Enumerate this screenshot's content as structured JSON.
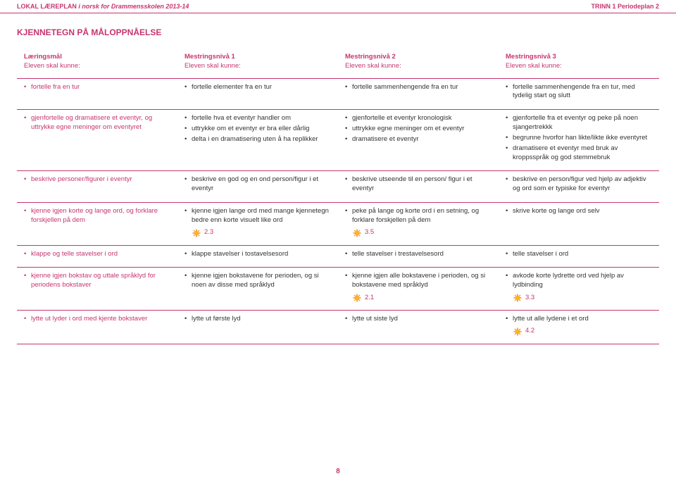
{
  "header": {
    "left_bold": "LOKAL LÆREPLAN",
    "left_italic": " i norsk for Drammensskolen 2013-14",
    "right": "TRINN 1 Periodeplan 2"
  },
  "section_title": "KJENNETEGN PÅ MÅLOPPNÅELSE",
  "columns": [
    {
      "title": "Læringsmål",
      "sub": "Eleven skal kunne:"
    },
    {
      "title": "Mestringsnivå 1",
      "sub": "Eleven skal kunne:"
    },
    {
      "title": "Mestringsnivå 2",
      "sub": "Eleven skal kunne:"
    },
    {
      "title": "Mestringsnivå 3",
      "sub": "Eleven skal kunne:"
    }
  ],
  "rows": [
    {
      "c0": [
        "fortelle fra en tur"
      ],
      "c1": [
        "fortelle elementer fra en tur"
      ],
      "c2": [
        "fortelle sammenhengende fra en tur"
      ],
      "c3": [
        "fortelle sammenhengende fra en tur, med tydelig start og slutt"
      ]
    },
    {
      "c0": [
        "gjenfortelle og dramatisere et eventyr, og uttrykke egne meninger om eventyret"
      ],
      "c1": [
        "fortelle hva et eventyr handler om",
        "uttrykke om et eventyr er bra eller dårlig",
        "delta i en dramatisering uten å ha replikker"
      ],
      "c2": [
        "gjenfortelle et eventyr kronologisk",
        "uttrykke egne meninger om et eventyr",
        "dramatisere et eventyr"
      ],
      "c3": [
        "gjenfortelle fra et eventyr og peke på noen sjangertrekkk",
        "begrunne hvorfor han likte/likte ikke eventyret",
        "dramatisere et eventyr med bruk av kroppsspråk og god stemmebruk"
      ]
    },
    {
      "c0": [
        "beskrive personer/figurer i eventyr"
      ],
      "c1": [
        "beskrive en god og en ond person/figur i et eventyr"
      ],
      "c2": [
        "beskrive utseende til en person/ figur i et eventyr"
      ],
      "c3": [
        "beskrive en person/figur ved hjelp av adjektiv og ord som er typiske for eventyr"
      ]
    },
    {
      "c0": [
        "kjenne igjen korte og lange ord, og forklare forskjellen på dem"
      ],
      "c1": [
        "kjenne igjen lange ord med mange kjennetegn bedre enn korte visuelt like ord"
      ],
      "c1_num": "2.3",
      "c2": [
        "peke på lange og korte ord i en setning, og forklare forskjellen på dem"
      ],
      "c2_num": "3.5",
      "c3": [
        "skrive korte og lange ord selv"
      ]
    },
    {
      "c0": [
        "klappe og telle stavelser i ord"
      ],
      "c1": [
        "klappe stavelser i tostavelsesord"
      ],
      "c2": [
        "telle stavelser i trestavelsesord"
      ],
      "c3": [
        "telle stavelser i ord"
      ]
    },
    {
      "c0": [
        "kjenne igjen bokstav og uttale språklyd for periodens bokstaver"
      ],
      "c1": [
        "kjenne igjen bokstavene for perioden, og si noen av disse med språklyd"
      ],
      "c2": [
        "kjenne igjen alle bokstavene i perioden, og si bokstavene med språklyd"
      ],
      "c2_num": "2.1",
      "c3": [
        "avkode korte lydrette ord ved hjelp av lydbinding"
      ],
      "c3_num": "3.3"
    },
    {
      "c0": [
        "lytte ut lyder i ord med kjente bokstaver"
      ],
      "c1": [
        "lytte ut første lyd"
      ],
      "c2": [
        "lytte ut siste lyd"
      ],
      "c3": [
        "lytte ut alle lydene i et ord"
      ],
      "c3_num": "4.2"
    }
  ],
  "page_number": "8",
  "colors": {
    "accent": "#c7356f",
    "text": "#333333",
    "sun_fill": "#fdb813",
    "sun_stroke": "#f5881f"
  }
}
